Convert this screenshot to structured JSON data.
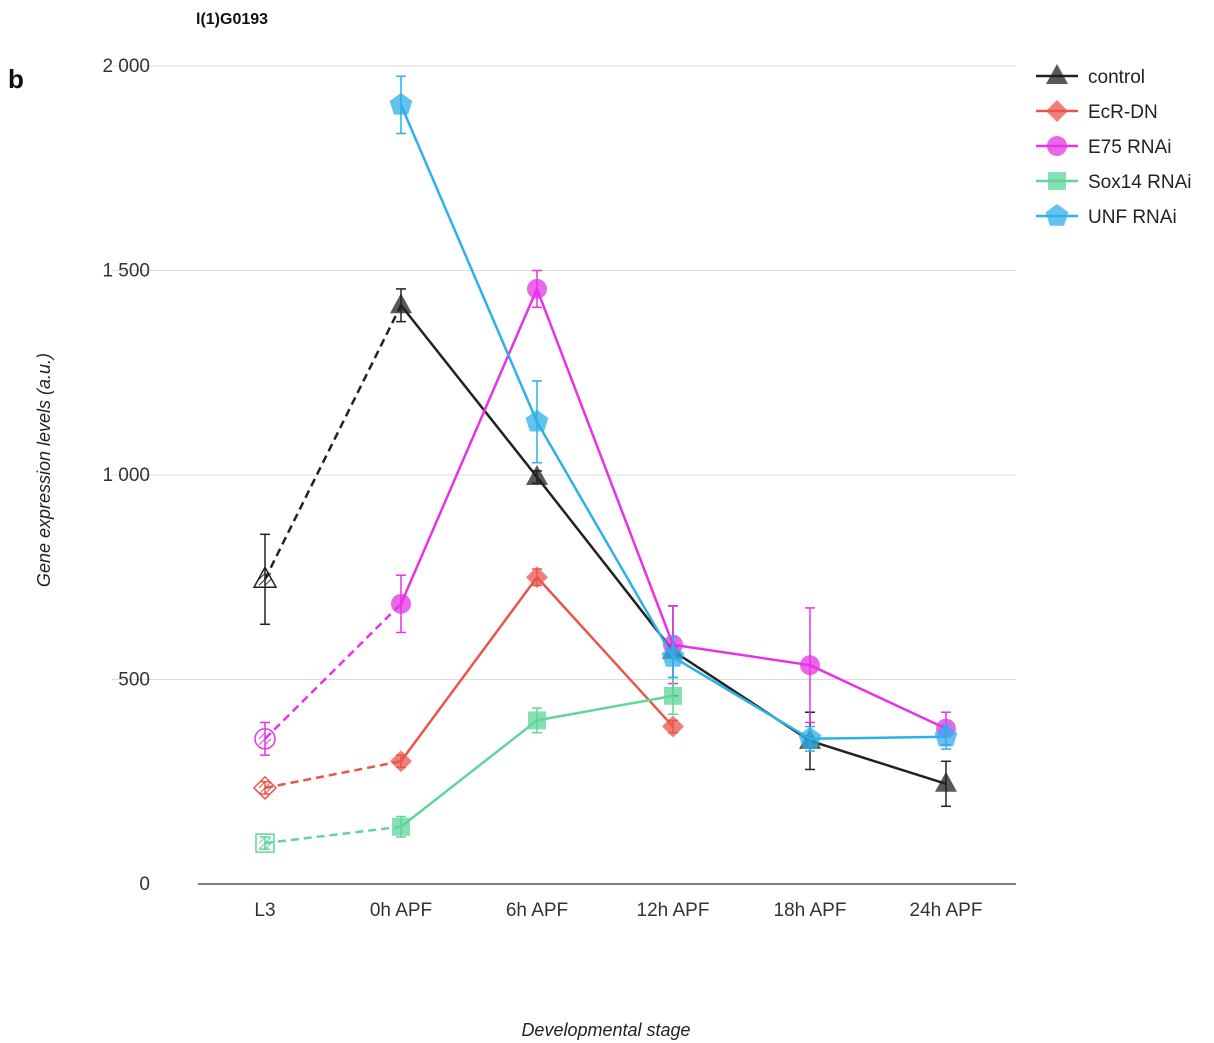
{
  "panel_letter": "b",
  "chart_data": {
    "type": "line",
    "title": "l(1)G0193",
    "xlabel": "Developmental stage",
    "ylabel": "Gene expression levels (a.u.)",
    "categories": [
      "L3",
      "0h APF",
      "6h APF",
      "12h APF",
      "18h APF",
      "24h APF"
    ],
    "ylim": [
      0,
      2000
    ],
    "yticks": [
      0,
      500,
      1000,
      1500,
      2000
    ],
    "ytick_labels": [
      "0",
      "500",
      "1 000",
      "1 500",
      "2 000"
    ],
    "grid": true,
    "legend_position": "top-right",
    "dashed_segment": "L3 to 0h APF",
    "series": [
      {
        "name": "control",
        "color": "#222222",
        "marker": "triangle",
        "values": [
          745,
          1415,
          995,
          570,
          350,
          245
        ],
        "errors": [
          110,
          40,
          15,
          110,
          70,
          55
        ]
      },
      {
        "name": "EcR-DN",
        "color": "#e8564a",
        "marker": "diamond",
        "values": [
          235,
          300,
          750,
          385,
          null,
          null
        ],
        "errors": [
          15,
          15,
          20,
          15,
          null,
          null
        ]
      },
      {
        "name": "E75 RNAi",
        "color": "#e633e6",
        "marker": "circle",
        "values": [
          355,
          685,
          1455,
          585,
          535,
          380
        ],
        "errors": [
          40,
          70,
          45,
          95,
          140,
          40
        ]
      },
      {
        "name": "Sox14 RNAi",
        "color": "#5fd69a",
        "marker": "square",
        "values": [
          100,
          140,
          400,
          460,
          null,
          null
        ],
        "errors": [
          15,
          25,
          30,
          45,
          null,
          null
        ]
      },
      {
        "name": "UNF RNAi",
        "color": "#2eb0e8",
        "marker": "pentagon",
        "values": [
          null,
          1905,
          1130,
          555,
          355,
          360
        ],
        "errors": [
          null,
          70,
          100,
          50,
          30,
          30
        ]
      }
    ]
  }
}
